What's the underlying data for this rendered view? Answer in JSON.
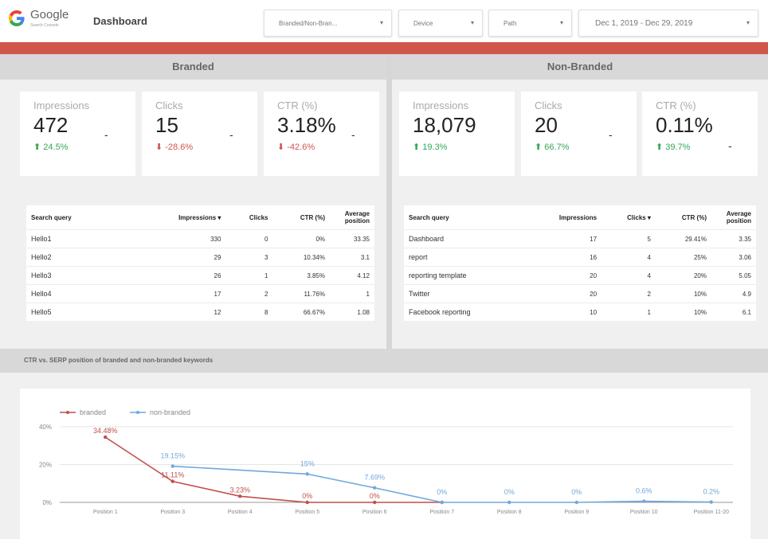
{
  "header": {
    "brand": "Google",
    "brand_sub": "Search Console",
    "title": "Dashboard",
    "filters": {
      "branded": "Branded/Non-Bran...",
      "device": "Device",
      "path": "Path",
      "date": "Dec 1, 2019 - Dec 29, 2019"
    },
    "caret": "▾",
    "accent_color": "#d0554b"
  },
  "branded": {
    "heading": "Branded",
    "cards": [
      {
        "label": "Impressions",
        "value": "472",
        "delta": "⬆ 24.5%",
        "trend": "up"
      },
      {
        "label": "Clicks",
        "value": "15",
        "delta": "⬇ -28.6%",
        "trend": "down"
      },
      {
        "label": "CTR (%)",
        "value": "3.18%",
        "delta": "⬇ -42.6%",
        "trend": "down"
      }
    ],
    "table": {
      "headers": [
        "Search query",
        "Impressions ▾",
        "Clicks",
        "CTR (%)",
        "Average position"
      ],
      "rows": [
        [
          "Hello1",
          "330",
          "0",
          "0%",
          "33.35"
        ],
        [
          "Hello2",
          "29",
          "3",
          "10.34%",
          "3.1"
        ],
        [
          "Hello3",
          "26",
          "1",
          "3.85%",
          "4.12"
        ],
        [
          "Hello4",
          "17",
          "2",
          "11.76%",
          "1"
        ],
        [
          "Hello5",
          "12",
          "8",
          "66.67%",
          "1.08"
        ]
      ]
    }
  },
  "nonbranded": {
    "heading": "Non-Branded",
    "cards": [
      {
        "label": "Impressions",
        "value": "18,079",
        "delta": "⬆ 19.3%",
        "trend": "up"
      },
      {
        "label": "Clicks",
        "value": "20",
        "delta": "⬆ 66.7%",
        "trend": "up"
      },
      {
        "label": "CTR (%)",
        "value": "0.11%",
        "delta": "⬆ 39.7%",
        "trend": "up"
      }
    ],
    "table": {
      "headers": [
        "Search query",
        "Impressions",
        "Clicks ▾",
        "CTR (%)",
        "Average position"
      ],
      "rows": [
        [
          "Dashboard",
          "17",
          "5",
          "29.41%",
          "3.35"
        ],
        [
          "report",
          "16",
          "4",
          "25%",
          "3.06"
        ],
        [
          "reporting template",
          "20",
          "4",
          "20%",
          "5.05"
        ],
        [
          "Twitter",
          "20",
          "2",
          "10%",
          "4.9"
        ],
        [
          "Facebook reporting",
          "10",
          "1",
          "10%",
          "6.1"
        ]
      ]
    }
  },
  "chart_section": {
    "heading": "CTR vs. SERP position of branded and non-branded keywords"
  },
  "chart_data": {
    "type": "line",
    "categories": [
      "Position 1",
      "Position 3",
      "Position 4",
      "Position 5",
      "Position 6",
      "Position 7",
      "Position 8",
      "Position 9",
      "Position 10",
      "Position 11-20"
    ],
    "ylim": [
      0,
      40
    ],
    "yticks": [
      "0%",
      "20%",
      "40%"
    ],
    "grid": true,
    "legend_position": "top-left",
    "series": [
      {
        "name": "branded",
        "color": "#c0504d",
        "values": [
          34.48,
          11.11,
          3.23,
          0,
          0,
          0,
          null,
          null,
          null,
          null
        ],
        "labels": [
          "34.48%",
          "11.11%",
          "3.23%",
          "0%",
          "0%",
          "",
          "",
          "",
          "",
          ""
        ]
      },
      {
        "name": "non-branded",
        "color": "#6fa8dc",
        "values": [
          null,
          19.15,
          null,
          15,
          7.69,
          0,
          0,
          0,
          0.6,
          0.2
        ],
        "labels": [
          "",
          "19.15%",
          "",
          "15%",
          "7.69%",
          "0%",
          "0%",
          "0%",
          "0.6%",
          "0.2%"
        ]
      }
    ]
  }
}
